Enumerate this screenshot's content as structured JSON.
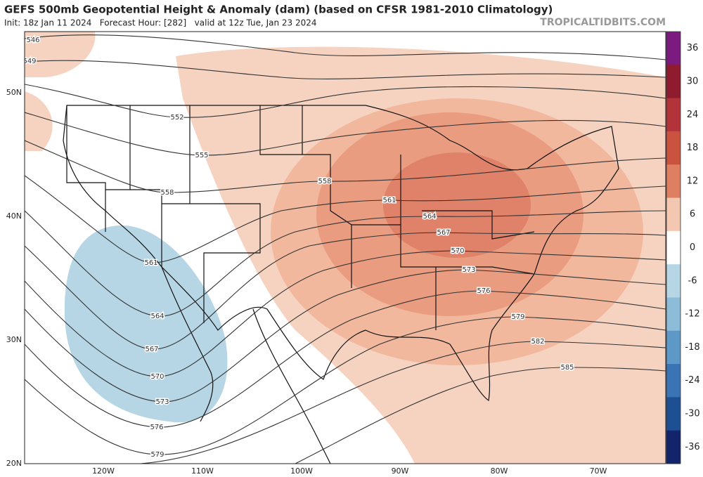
{
  "header": {
    "title": "GEFS 500mb Geopotential Height & Anomaly (dam) (based on CFSR 1981-2010 Climatology)",
    "subtitle": "Init: 18z Jan 11 2024   Forecast Hour: [282]   valid at 12z Tue, Jan 23 2024",
    "source": "TROPICALTIDBITS.COM"
  },
  "map": {
    "latitude_labels": [
      "50N",
      "40N",
      "30N",
      "20N"
    ],
    "longitude_labels": [
      "120W",
      "110W",
      "100W",
      "90W",
      "80W",
      "70W"
    ],
    "contour_labels": [
      "546",
      "549",
      "552",
      "555",
      "558",
      "558",
      "561",
      "561",
      "564",
      "564",
      "567",
      "567",
      "570",
      "570",
      "573",
      "573",
      "576",
      "576",
      "579",
      "579",
      "582",
      "585"
    ]
  },
  "colorbar": {
    "levels": [
      {
        "value": 36,
        "color": "#7b1a7f"
      },
      {
        "value": 30,
        "color": "#8e1b2e"
      },
      {
        "value": 24,
        "color": "#b3333b"
      },
      {
        "value": 18,
        "color": "#c9533f"
      },
      {
        "value": 12,
        "color": "#de7f62"
      },
      {
        "value": 6,
        "color": "#f4c7b0"
      },
      {
        "value": 0,
        "color": "#ffffff"
      },
      {
        "value": -6,
        "color": "#b6d6e6"
      },
      {
        "value": -12,
        "color": "#8cbcd8"
      },
      {
        "value": -18,
        "color": "#5d98c6"
      },
      {
        "value": -24,
        "color": "#3b74b4"
      },
      {
        "value": -30,
        "color": "#1f4f93"
      },
      {
        "value": -36,
        "color": "#13246a"
      }
    ]
  }
}
